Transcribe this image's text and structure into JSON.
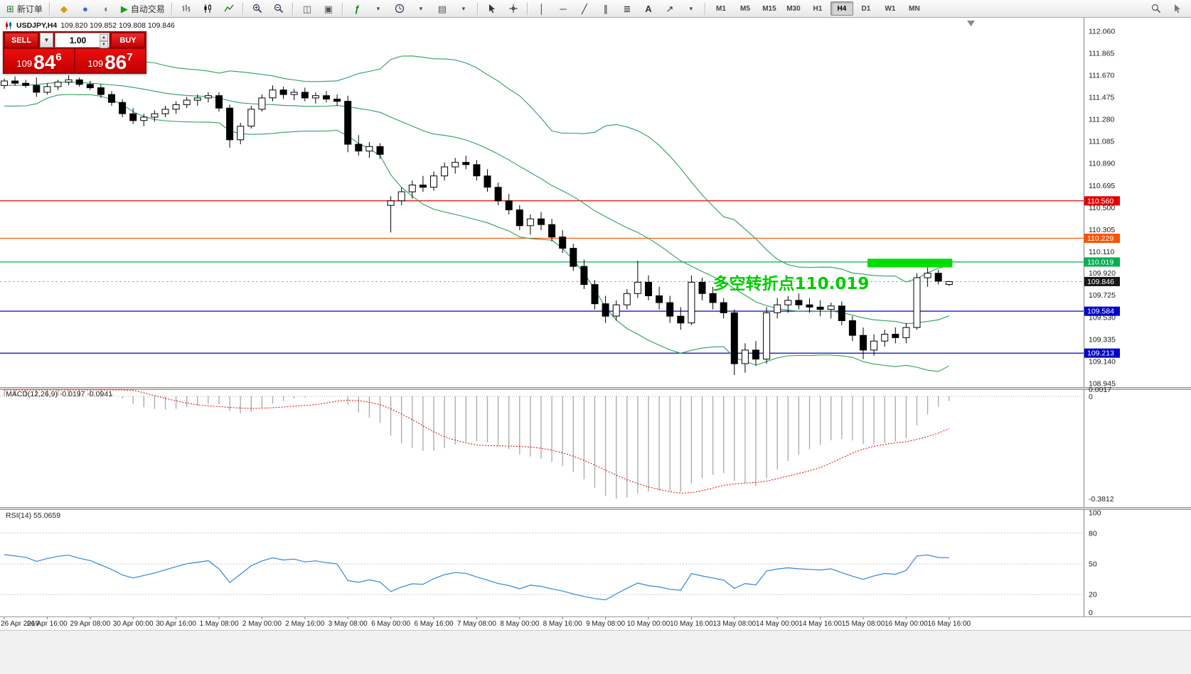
{
  "toolbar": {
    "new_order_label": "新订单",
    "autotrading_label": "自动交易",
    "timeframes": [
      "M1",
      "M5",
      "M15",
      "M30",
      "H1",
      "H4",
      "D1",
      "W1",
      "MN"
    ],
    "active_timeframe": "H4"
  },
  "trade_panel": {
    "sell_label": "SELL",
    "buy_label": "BUY",
    "volume": "1.00",
    "sell_price": {
      "prefix": "109",
      "big": "84",
      "pip": "6"
    },
    "buy_price": {
      "prefix": "109",
      "big": "86",
      "pip": "7"
    }
  },
  "chart_data": {
    "type": "candlestick",
    "symbol": "USDJPY",
    "timeframe": "H4",
    "title": "USDJPY,H4",
    "ohlc_text": "109.820 109.852 109.808 109.846",
    "label_every": 4,
    "x_labels": [
      "26 Apr 2019",
      "26 Apr 16:00",
      "29 Apr 08:00",
      "30 Apr 00:00",
      "30 Apr 16:00",
      "1 May 08:00",
      "2 May 00:00",
      "2 May 16:00",
      "3 May 08:00",
      "6 May 00:00",
      "6 May 16:00",
      "7 May 08:00",
      "8 May 00:00",
      "8 May 16:00",
      "9 May 08:00",
      "10 May 00:00",
      "10 May 16:00",
      "13 May 08:00",
      "14 May 00:00",
      "14 May 16:00",
      "15 May 08:00",
      "16 May 00:00",
      "16 May 16:00"
    ],
    "y_axis_ticks": [
      "112.060",
      "111.865",
      "111.670",
      "111.475",
      "111.280",
      "111.085",
      "110.890",
      "110.695",
      "110.500",
      "110.305",
      "110.110",
      "109.920",
      "109.725",
      "109.530",
      "109.335",
      "109.140",
      "108.945"
    ],
    "warmup_closes": [
      111.2,
      111.3,
      111.42,
      111.52,
      111.44,
      111.36,
      111.5,
      111.62,
      111.55,
      111.42,
      111.35,
      111.45,
      111.56,
      111.64,
      111.7,
      111.65,
      111.58,
      111.5,
      111.55,
      111.62,
      111.68,
      111.72,
      111.66,
      111.6,
      111.57,
      111.6
    ],
    "candles": [
      [
        111.58,
        111.64,
        111.55,
        111.62
      ],
      [
        111.62,
        111.66,
        111.58,
        111.6
      ],
      [
        111.6,
        111.63,
        111.56,
        111.58
      ],
      [
        111.58,
        111.65,
        111.48,
        111.52
      ],
      [
        111.52,
        111.6,
        111.5,
        111.57
      ],
      [
        111.57,
        111.63,
        111.54,
        111.61
      ],
      [
        111.61,
        111.67,
        111.58,
        111.63
      ],
      [
        111.63,
        111.65,
        111.57,
        111.59
      ],
      [
        111.59,
        111.62,
        111.54,
        111.56
      ],
      [
        111.56,
        111.59,
        111.47,
        111.5
      ],
      [
        111.5,
        111.53,
        111.4,
        111.43
      ],
      [
        111.43,
        111.46,
        111.3,
        111.33
      ],
      [
        111.33,
        111.38,
        111.24,
        111.27
      ],
      [
        111.27,
        111.33,
        111.22,
        111.3
      ],
      [
        111.3,
        111.36,
        111.26,
        111.33
      ],
      [
        111.33,
        111.4,
        111.3,
        111.37
      ],
      [
        111.37,
        111.44,
        111.33,
        111.41
      ],
      [
        111.41,
        111.48,
        111.38,
        111.45
      ],
      [
        111.45,
        111.5,
        111.4,
        111.47
      ],
      [
        111.47,
        111.52,
        111.43,
        111.49
      ],
      [
        111.49,
        111.52,
        111.35,
        111.38
      ],
      [
        111.38,
        111.41,
        111.03,
        111.1
      ],
      [
        111.1,
        111.25,
        111.06,
        111.22
      ],
      [
        111.22,
        111.4,
        111.2,
        111.37
      ],
      [
        111.37,
        111.5,
        111.35,
        111.47
      ],
      [
        111.47,
        111.58,
        111.44,
        111.54
      ],
      [
        111.54,
        111.57,
        111.46,
        111.5
      ],
      [
        111.5,
        111.55,
        111.45,
        111.52
      ],
      [
        111.52,
        111.56,
        111.44,
        111.47
      ],
      [
        111.47,
        111.52,
        111.42,
        111.49
      ],
      [
        111.49,
        111.53,
        111.43,
        111.46
      ],
      [
        111.46,
        111.5,
        111.4,
        111.44
      ],
      [
        111.44,
        111.49,
        110.99,
        111.06
      ],
      [
        111.06,
        111.14,
        110.96,
        111.0
      ],
      [
        111.0,
        111.08,
        110.94,
        111.04
      ],
      [
        111.04,
        111.07,
        110.93,
        110.97
      ],
      [
        110.52,
        110.6,
        110.28,
        110.56
      ],
      [
        110.56,
        110.68,
        110.52,
        110.64
      ],
      [
        110.64,
        110.74,
        110.58,
        110.7
      ],
      [
        110.7,
        110.78,
        110.64,
        110.68
      ],
      [
        110.68,
        110.82,
        110.65,
        110.78
      ],
      [
        110.78,
        110.9,
        110.74,
        110.86
      ],
      [
        110.86,
        110.94,
        110.8,
        110.9
      ],
      [
        110.9,
        110.96,
        110.84,
        110.88
      ],
      [
        110.88,
        110.92,
        110.74,
        110.78
      ],
      [
        110.78,
        110.84,
        110.64,
        110.68
      ],
      [
        110.68,
        110.72,
        110.52,
        110.56
      ],
      [
        110.56,
        110.62,
        110.44,
        110.48
      ],
      [
        110.48,
        110.52,
        110.3,
        110.34
      ],
      [
        110.34,
        110.44,
        110.26,
        110.4
      ],
      [
        110.4,
        110.46,
        110.3,
        110.35
      ],
      [
        110.35,
        110.4,
        110.2,
        110.24
      ],
      [
        110.24,
        110.3,
        110.1,
        110.14
      ],
      [
        110.14,
        110.18,
        109.94,
        109.98
      ],
      [
        109.98,
        110.04,
        109.78,
        109.82
      ],
      [
        109.82,
        109.86,
        109.6,
        109.65
      ],
      [
        109.65,
        109.72,
        109.48,
        109.54
      ],
      [
        109.54,
        109.68,
        109.5,
        109.64
      ],
      [
        109.64,
        109.78,
        109.6,
        109.74
      ],
      [
        109.74,
        110.03,
        109.7,
        109.84
      ],
      [
        109.84,
        109.9,
        109.68,
        109.72
      ],
      [
        109.72,
        109.8,
        109.6,
        109.66
      ],
      [
        109.66,
        109.72,
        109.48,
        109.54
      ],
      [
        109.54,
        109.62,
        109.42,
        109.48
      ],
      [
        109.48,
        109.9,
        109.46,
        109.84
      ],
      [
        109.84,
        109.88,
        109.68,
        109.74
      ],
      [
        109.74,
        109.8,
        109.6,
        109.66
      ],
      [
        109.66,
        109.7,
        109.52,
        109.57
      ],
      [
        109.57,
        109.6,
        109.02,
        109.12
      ],
      [
        109.12,
        109.3,
        109.04,
        109.24
      ],
      [
        109.24,
        109.32,
        109.1,
        109.16
      ],
      [
        109.16,
        109.62,
        109.12,
        109.57
      ],
      [
        109.57,
        109.7,
        109.52,
        109.64
      ],
      [
        109.64,
        109.72,
        109.57,
        109.68
      ],
      [
        109.68,
        109.74,
        109.6,
        109.64
      ],
      [
        109.64,
        109.7,
        109.57,
        109.62
      ],
      [
        109.62,
        109.68,
        109.54,
        109.6
      ],
      [
        109.6,
        109.66,
        109.52,
        109.63
      ],
      [
        109.63,
        109.67,
        109.46,
        109.5
      ],
      [
        109.5,
        109.54,
        109.32,
        109.37
      ],
      [
        109.37,
        109.44,
        109.16,
        109.24
      ],
      [
        109.24,
        109.38,
        109.19,
        109.32
      ],
      [
        109.32,
        109.42,
        109.27,
        109.38
      ],
      [
        109.38,
        109.44,
        109.3,
        109.35
      ],
      [
        109.35,
        109.48,
        109.3,
        109.44
      ],
      [
        109.44,
        109.92,
        109.42,
        109.88
      ],
      [
        109.88,
        109.97,
        109.8,
        109.92
      ],
      [
        109.92,
        109.95,
        109.82,
        109.85
      ],
      [
        109.82,
        109.852,
        109.808,
        109.846
      ]
    ],
    "levels": [
      {
        "price": 110.56,
        "label": "110.560",
        "color": "#e60000"
      },
      {
        "price": 110.229,
        "label": "110.229",
        "color": "#ff5200"
      },
      {
        "price": 110.019,
        "label": "110.019",
        "color": "#00b050"
      },
      {
        "price": 109.584,
        "label": "109.584",
        "color": "#0000cc"
      },
      {
        "price": 109.213,
        "label": "109.213",
        "color": "#0000cc"
      }
    ],
    "current_price": {
      "price": 109.846,
      "label": "109.846",
      "tag_color": "#161616",
      "line_color": "#aaaaaa"
    },
    "bollinger": {
      "period": 20,
      "deviation": 2,
      "color": "#2aa05a"
    },
    "highlight_rect": {
      "from_index": 80.4,
      "to_index": 88.3,
      "price_top": 110.048,
      "price_bottom": 109.972,
      "color": "#00dd00"
    },
    "annotation": {
      "text": "多空转折点110.019",
      "color": "#00cc00",
      "index": 66,
      "baseline_price": 109.781
    },
    "macd": {
      "label": "MACD(12,26,9) -0.0197 -0.0941",
      "fast": 12,
      "slow": 26,
      "signal": 9,
      "axis_labels": [
        "0.0017",
        "0",
        "-0.3812"
      ],
      "histogram_color": "#a8a8a8",
      "signal_color": "#e00000"
    },
    "rsi": {
      "label": "RSI(14) 55.0659",
      "period": 14,
      "axis_labels": [
        "100",
        "80",
        "50",
        "20",
        "0"
      ],
      "levels": [
        80,
        50,
        20
      ],
      "line_color": "#2e86e0"
    }
  }
}
